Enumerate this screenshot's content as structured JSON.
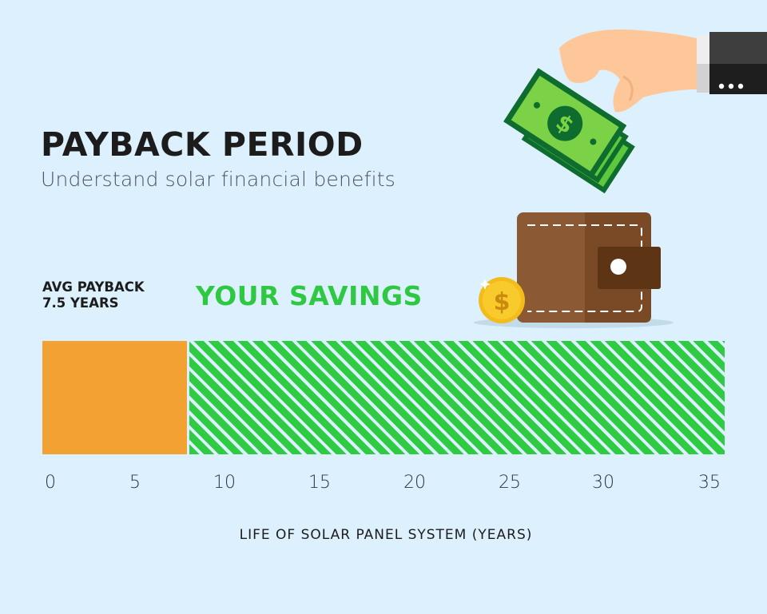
{
  "header": {
    "title": "PAYBACK PERIOD",
    "subtitle": "Understand solar financial benefits"
  },
  "labels": {
    "avg_payback_line1": "AVG PAYBACK",
    "avg_payback_line2": "7.5 YEARS",
    "your_savings": "YOUR SAVINGS"
  },
  "colors": {
    "background": "#dcf0fd",
    "payback": "#f2a133",
    "savings": "#2ecb43",
    "title": "#1d1c1d",
    "savings_text": "#2fc843"
  },
  "illustration": {
    "icons": [
      "hand-with-cash-icon",
      "dollar-bills-icon",
      "wallet-icon",
      "gold-coin-icon"
    ]
  },
  "chart_data": {
    "type": "bar",
    "orientation": "horizontal-stacked",
    "title": "PAYBACK PERIOD",
    "subtitle": "Understand solar financial benefits",
    "xlabel": "LIFE OF SOLAR PANEL SYSTEM (YEARS)",
    "ylabel": "",
    "xlim": [
      0,
      35
    ],
    "xticks": [
      "0",
      "5",
      "10",
      "15",
      "20",
      "25",
      "30",
      "35"
    ],
    "grid": false,
    "legend": "none (inline labels)",
    "series": [
      {
        "name": "AVG PAYBACK 7.5 YEARS",
        "start": 0,
        "end": 7.5,
        "value": 7.5,
        "color": "#f2a133",
        "fill": "solid"
      },
      {
        "name": "YOUR SAVINGS",
        "start": 7.5,
        "end": 35,
        "value": 27.5,
        "color": "#2ecb43",
        "fill": "diagonal-stripes"
      }
    ]
  }
}
